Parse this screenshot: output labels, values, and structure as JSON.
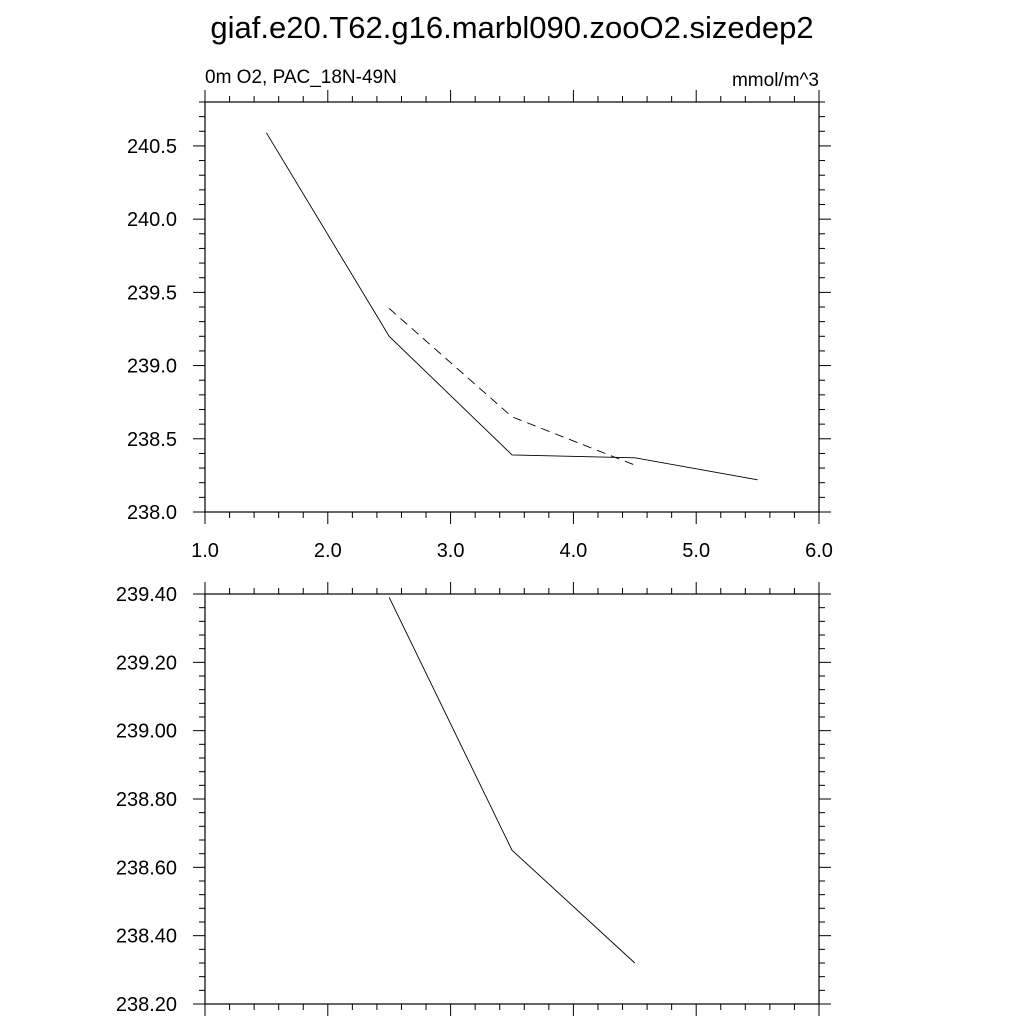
{
  "title": "giaf.e20.T62.g16.marbl090.zooO2.sizedep2",
  "chart_data": [
    {
      "type": "line",
      "left_label": "0m O2, PAC_18N-49N",
      "right_label": "mmol/m^3",
      "xlim": [
        1.0,
        6.0
      ],
      "ylim": [
        238.0,
        240.8
      ],
      "x_ticks": [
        1.0,
        2.0,
        3.0,
        4.0,
        5.0,
        6.0
      ],
      "x_tick_labels": [
        "1.0",
        "2.0",
        "3.0",
        "4.0",
        "5.0",
        "6.0"
      ],
      "y_ticks": [
        238.0,
        238.5,
        239.0,
        239.5,
        240.0,
        240.5
      ],
      "y_tick_labels": [
        "238.0",
        "238.5",
        "239.0",
        "239.5",
        "240.0",
        "240.5"
      ],
      "grid": false,
      "series": [
        {
          "style": "solid",
          "x": [
            1.5,
            2.5,
            3.5,
            4.5,
            5.5
          ],
          "y": [
            240.59,
            239.2,
            238.39,
            238.37,
            238.22
          ]
        },
        {
          "style": "dashed",
          "x": [
            2.5,
            3.5,
            4.5
          ],
          "y": [
            239.39,
            238.65,
            238.32
          ]
        }
      ]
    },
    {
      "type": "line",
      "xlim": [
        1.0,
        6.0
      ],
      "ylim": [
        238.2,
        239.4
      ],
      "x_ticks": [
        1.0,
        2.0,
        3.0,
        4.0,
        5.0,
        6.0
      ],
      "y_ticks": [
        238.2,
        238.4,
        238.6,
        238.8,
        239.0,
        239.2,
        239.4
      ],
      "y_tick_labels": [
        "238.20",
        "238.40",
        "238.60",
        "238.80",
        "239.00",
        "239.20",
        "239.40"
      ],
      "grid": false,
      "series": [
        {
          "style": "solid",
          "x": [
            2.5,
            3.5,
            4.5
          ],
          "y": [
            239.39,
            238.65,
            238.32
          ]
        }
      ]
    }
  ]
}
